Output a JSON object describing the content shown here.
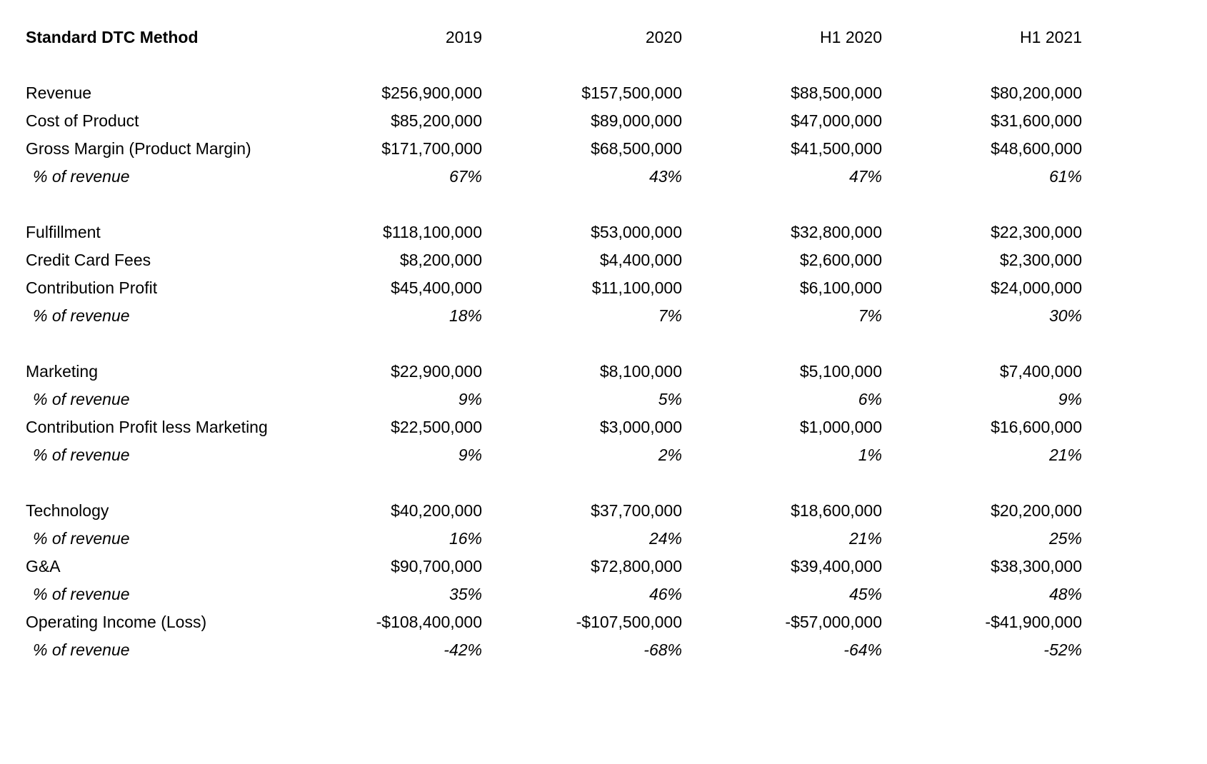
{
  "table": {
    "title": "Standard DTC Method",
    "columns": [
      "2019",
      "2020",
      "H1 2020",
      "H1 2021"
    ],
    "sections": [
      {
        "rows": [
          {
            "label": "Revenue",
            "emphasis": "normal",
            "values": [
              "$256,900,000",
              "$157,500,000",
              "$88,500,000",
              "$80,200,000"
            ]
          },
          {
            "label": "Cost of Product",
            "emphasis": "normal",
            "values": [
              "$85,200,000",
              "$89,000,000",
              "$47,000,000",
              "$31,600,000"
            ]
          },
          {
            "label": "Gross Margin (Product Margin)",
            "emphasis": "normal",
            "values": [
              "$171,700,000",
              "$68,500,000",
              "$41,500,000",
              "$48,600,000"
            ]
          },
          {
            "label": "% of revenue",
            "emphasis": "percent",
            "values": [
              "67%",
              "43%",
              "47%",
              "61%"
            ]
          }
        ]
      },
      {
        "rows": [
          {
            "label": "Fulfillment",
            "emphasis": "normal",
            "values": [
              "$118,100,000",
              "$53,000,000",
              "$32,800,000",
              "$22,300,000"
            ]
          },
          {
            "label": "Credit Card Fees",
            "emphasis": "normal",
            "values": [
              "$8,200,000",
              "$4,400,000",
              "$2,600,000",
              "$2,300,000"
            ]
          },
          {
            "label": "Contribution Profit",
            "emphasis": "normal",
            "values": [
              "$45,400,000",
              "$11,100,000",
              "$6,100,000",
              "$24,000,000"
            ]
          },
          {
            "label": "% of revenue",
            "emphasis": "percent",
            "values": [
              "18%",
              "7%",
              "7%",
              "30%"
            ]
          }
        ]
      },
      {
        "rows": [
          {
            "label": "Marketing",
            "emphasis": "normal",
            "values": [
              "$22,900,000",
              "$8,100,000",
              "$5,100,000",
              "$7,400,000"
            ]
          },
          {
            "label": "% of revenue",
            "emphasis": "percent",
            "values": [
              "9%",
              "5%",
              "6%",
              "9%"
            ]
          },
          {
            "label": "Contribution Profit less Marketing",
            "emphasis": "normal",
            "values": [
              "$22,500,000",
              "$3,000,000",
              "$1,000,000",
              "$16,600,000"
            ]
          },
          {
            "label": "% of revenue",
            "emphasis": "percent",
            "values": [
              "9%",
              "2%",
              "1%",
              "21%"
            ]
          }
        ]
      },
      {
        "rows": [
          {
            "label": "Technology",
            "emphasis": "normal",
            "values": [
              "$40,200,000",
              "$37,700,000",
              "$18,600,000",
              "$20,200,000"
            ]
          },
          {
            "label": "% of revenue",
            "emphasis": "percent",
            "values": [
              "16%",
              "24%",
              "21%",
              "25%"
            ]
          },
          {
            "label": "G&A",
            "emphasis": "normal",
            "values": [
              "$90,700,000",
              "$72,800,000",
              "$39,400,000",
              "$38,300,000"
            ]
          },
          {
            "label": "% of revenue",
            "emphasis": "percent",
            "values": [
              "35%",
              "46%",
              "45%",
              "48%"
            ]
          },
          {
            "label": "Operating Income (Loss)",
            "emphasis": "normal",
            "values": [
              "-$108,400,000",
              "-$107,500,000",
              "-$57,000,000",
              "-$41,900,000"
            ]
          },
          {
            "label": "% of revenue",
            "emphasis": "percent",
            "values": [
              "-42%",
              "-68%",
              "-64%",
              "-52%"
            ]
          }
        ]
      }
    ]
  }
}
